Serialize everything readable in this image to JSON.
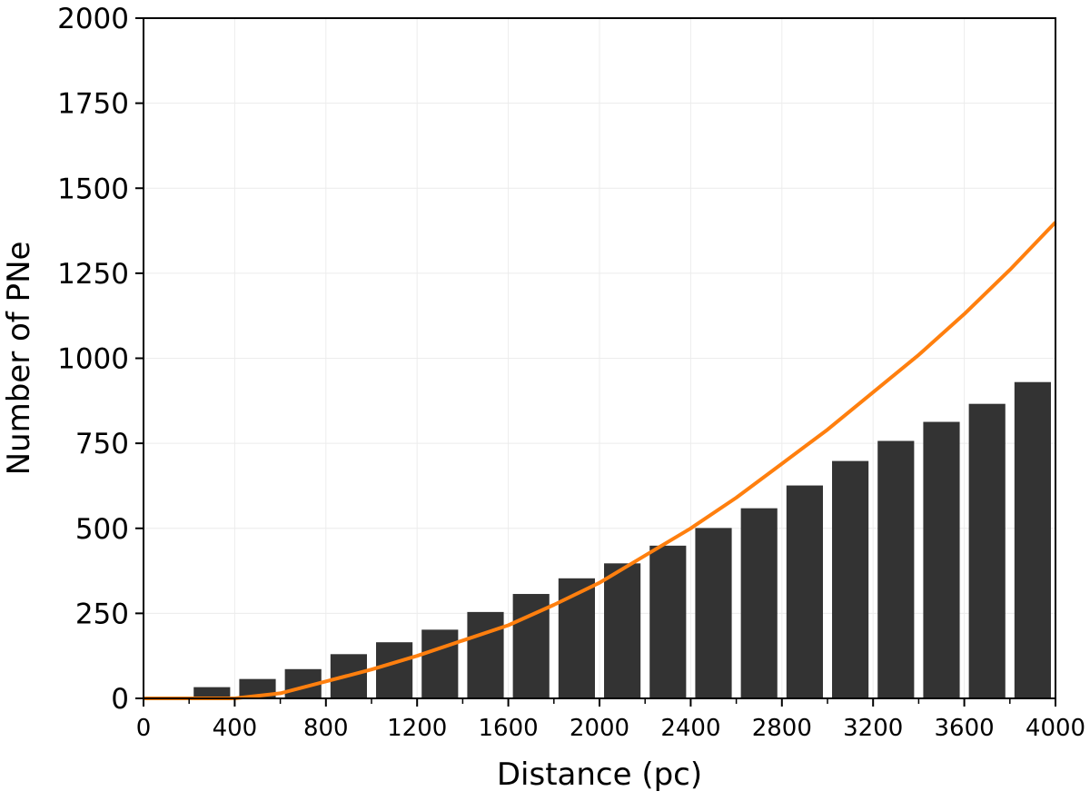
{
  "chart_data": {
    "type": "bar",
    "title": "",
    "xlabel": "Distance (pc)",
    "ylabel": "Number of PNe",
    "xlim": [
      0,
      4000
    ],
    "ylim": [
      0,
      2000
    ],
    "xticks": [
      0,
      400,
      800,
      1200,
      1600,
      2000,
      2400,
      2800,
      3200,
      3600,
      4000
    ],
    "yticks": [
      0,
      250,
      500,
      750,
      1000,
      1250,
      1500,
      1750,
      2000
    ],
    "grid": true,
    "bin_width": 200,
    "bin_centers": [
      100,
      300,
      500,
      700,
      900,
      1100,
      1300,
      1500,
      1700,
      1900,
      2100,
      2300,
      2500,
      2700,
      2900,
      3100,
      3300,
      3500,
      3700,
      3900
    ],
    "series": [
      {
        "values": [
          3,
          33,
          57,
          86,
          130,
          165,
          202,
          254,
          307,
          353,
          397,
          449,
          501,
          559,
          626,
          698,
          757,
          813,
          866,
          930
        ],
        "color": "#333333"
      },
      {
        "type": "line",
        "x": [
          0,
          200,
          400,
          600,
          800,
          1000,
          1200,
          1400,
          1600,
          1800,
          2000,
          2200,
          2400,
          2600,
          2800,
          3000,
          3200,
          3400,
          3600,
          3800,
          4000
        ],
        "values": [
          0,
          0,
          0,
          15,
          50,
          85,
          125,
          170,
          215,
          275,
          340,
          420,
          500,
          590,
          690,
          790,
          900,
          1010,
          1130,
          1260,
          1400
        ],
        "color": "#ff7f0e"
      }
    ]
  }
}
